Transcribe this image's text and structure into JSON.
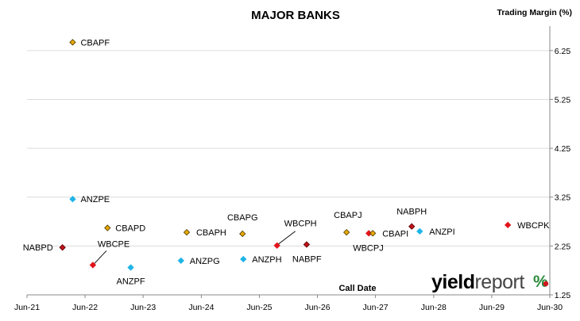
{
  "chart_data": {
    "type": "scatter",
    "title": "MAJOR BANKS",
    "ylabel": "Trading Margin  (%)",
    "xlabel": "Call Date",
    "ylim": [
      1.25,
      6.75
    ],
    "yticks": [
      1.25,
      2.25,
      3.25,
      4.25,
      5.25,
      6.25
    ],
    "ytick_labels": [
      "1.25",
      "2.25",
      "3.25",
      "4.25",
      "5.25",
      "6.25"
    ],
    "y_axis_position": "right",
    "xlim": [
      "2021-06-01",
      "2030-06-01"
    ],
    "xticks": [
      "2021-06-01",
      "2022-06-01",
      "2023-06-01",
      "2024-06-01",
      "2025-06-01",
      "2026-06-01",
      "2027-06-01",
      "2028-06-01",
      "2029-06-01",
      "2030-06-01"
    ],
    "xtick_labels": [
      "Jun-21",
      "Jun-22",
      "Jun-23",
      "Jun-24",
      "Jun-25",
      "Jun-26",
      "Jun-27",
      "Jun-28",
      "Jun-29",
      "Jun-30"
    ],
    "grid": "horizontal",
    "legend": "none",
    "logo": "yieldreport %",
    "colors": {
      "CBA": "#e8a800",
      "ANZ": "#1fb4e6",
      "NAB": "#c0121a",
      "WBC": "#e4141b"
    },
    "points": [
      {
        "label": "CBAPF",
        "bank": "CBA",
        "x": "2022-03-15",
        "y": 6.42
      },
      {
        "label": "ANZPE",
        "bank": "ANZ",
        "x": "2022-03-15",
        "y": 3.21
      },
      {
        "label": "CBAPD",
        "bank": "CBA",
        "x": "2022-10-20",
        "y": 2.62
      },
      {
        "label": "NABPD",
        "bank": "NAB",
        "x": "2022-01-10",
        "y": 2.22
      },
      {
        "label": "WBCPE",
        "bank": "WBC",
        "x": "2022-07-20",
        "y": 1.86
      },
      {
        "label": "ANZPF",
        "bank": "ANZ",
        "x": "2023-03-15",
        "y": 1.81
      },
      {
        "label": "CBAPH",
        "bank": "CBA",
        "x": "2024-03-01",
        "y": 2.53
      },
      {
        "label": "ANZPG",
        "bank": "ANZ",
        "x": "2024-01-25",
        "y": 1.95
      },
      {
        "label": "CBAPG",
        "bank": "CBA",
        "x": "2025-02-15",
        "y": 2.5
      },
      {
        "label": "ANZPH",
        "bank": "ANZ",
        "x": "2025-02-20",
        "y": 1.98
      },
      {
        "label": "WBCPH",
        "bank": "WBC",
        "x": "2025-09-20",
        "y": 2.26
      },
      {
        "label": "NABPF",
        "bank": "NAB",
        "x": "2026-03-25",
        "y": 2.28
      },
      {
        "label": "CBAPJ",
        "bank": "CBA",
        "x": "2026-12-01",
        "y": 2.53
      },
      {
        "label": "WBCPJ",
        "bank": "WBC",
        "x": "2027-04-20",
        "y": 2.51
      },
      {
        "label": "CBAPI",
        "bank": "CBA",
        "x": "2027-05-15",
        "y": 2.51
      },
      {
        "label": "NABPH",
        "bank": "NAB",
        "x": "2028-01-15",
        "y": 2.65
      },
      {
        "label": "ANZPI",
        "bank": "ANZ",
        "x": "2028-03-05",
        "y": 2.55
      },
      {
        "label": "WBCPK",
        "bank": "WBC",
        "x": "2029-09-10",
        "y": 2.68
      }
    ]
  }
}
